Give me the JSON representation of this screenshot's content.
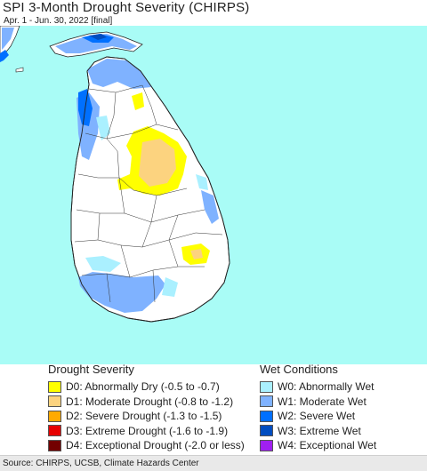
{
  "header": {
    "title": "SPI 3-Month Drought Severity (CHIRPS)",
    "subtitle": "Apr. 1 - Jun. 30, 2022 [final]"
  },
  "legend": {
    "drought": {
      "heading": "Drought Severity",
      "items": [
        {
          "label": "D0: Abnormally Dry (-0.5 to -0.7)",
          "color": "#ffff00"
        },
        {
          "label": "D1: Moderate Drought (-0.8 to -1.2)",
          "color": "#fcd37f"
        },
        {
          "label": "D2: Severe Drought (-1.3 to -1.5)",
          "color": "#ffaa00"
        },
        {
          "label": "D3: Extreme Drought (-1.6 to -1.9)",
          "color": "#e60000"
        },
        {
          "label": "D4: Exceptional Drought (-2.0 or less)",
          "color": "#730000"
        }
      ]
    },
    "wet": {
      "heading": "Wet Conditions",
      "items": [
        {
          "label": "W0: Abnormally Wet",
          "color": "#aaf0ff"
        },
        {
          "label": "W1: Moderate Wet",
          "color": "#7fb2ff"
        },
        {
          "label": "W2: Severe Wet",
          "color": "#0070ff"
        },
        {
          "label": "W3: Extreme Wet",
          "color": "#004dc0"
        },
        {
          "label": "W4: Exceptional Wet",
          "color": "#a020f0"
        }
      ]
    }
  },
  "footer": {
    "source": "Source: CHIRPS, UCSB, Climate Hazards Center"
  },
  "colors": {
    "ocean": "#a9fcf6",
    "land": "#ffffff"
  }
}
